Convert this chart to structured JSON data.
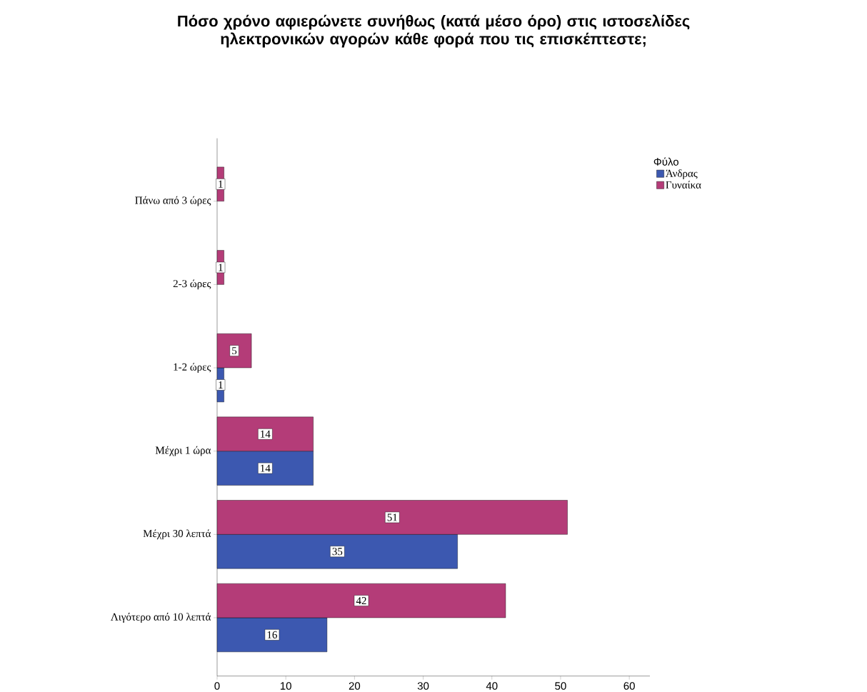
{
  "chart_data": {
    "type": "bar",
    "orientation": "horizontal",
    "title": "Πόσο χρόνο αφιερώνετε συνήθως (κατά μέσο όρο) στις ιστοσελίδες ηλεκτρονικών αγορών κάθε φορά που τις επισκέπτεστε;",
    "categories": [
      "Πάνω από 3 ώρες",
      "2-3 ώρες",
      "1-2 ώρες",
      "Μέχρι 1 ώρα",
      "Μέχρι 30 λεπτά",
      "Λιγότερο από 10 λεπτά"
    ],
    "series": [
      {
        "name": "Άνδρας",
        "color": "#3c58b0",
        "values": [
          null,
          null,
          1,
          14,
          35,
          16
        ]
      },
      {
        "name": "Γυναίκα",
        "color": "#b43c78",
        "values": [
          1,
          1,
          5,
          14,
          51,
          42
        ]
      }
    ],
    "legend_title": "Φύλο",
    "legend": "top right",
    "data_labels": true,
    "xlim": [
      0,
      63
    ],
    "xticks": [
      0,
      10,
      20,
      30,
      40,
      50,
      60
    ],
    "grid": false
  }
}
